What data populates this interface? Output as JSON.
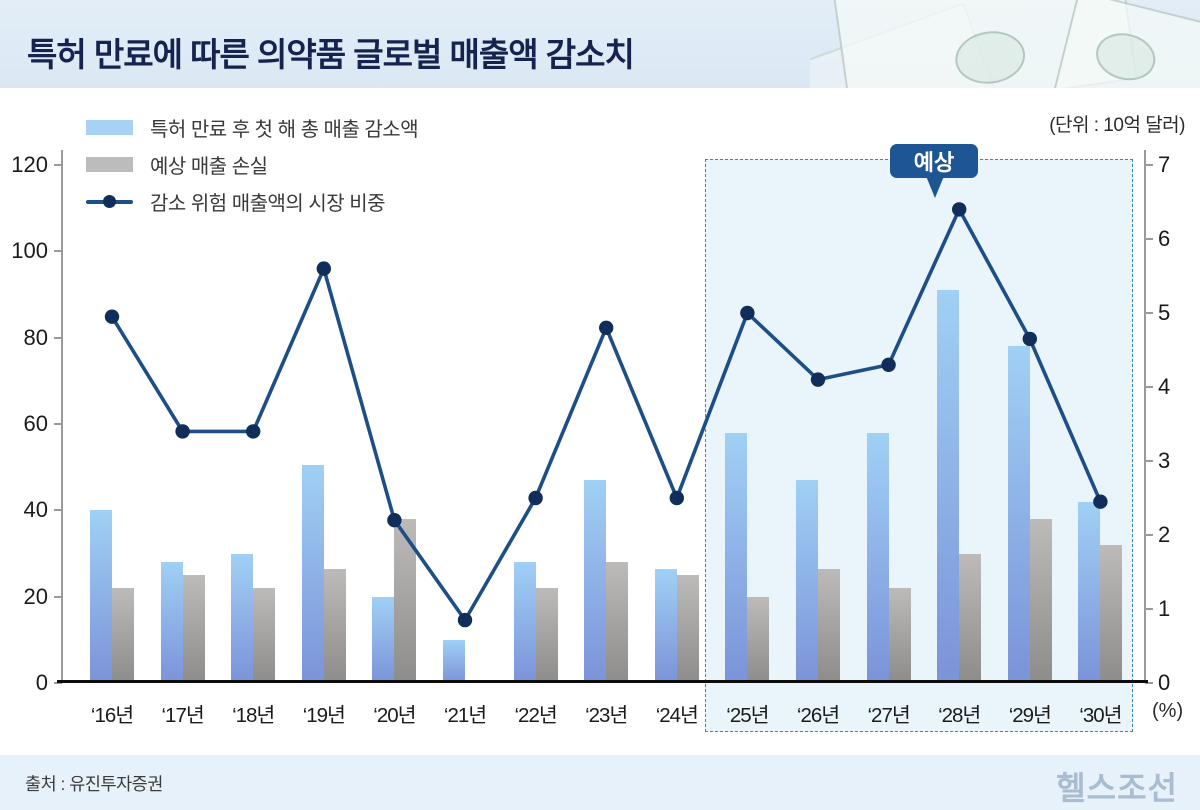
{
  "header": {
    "title": "특허 만료에 따른 의약품 글로벌 매출액 감소치"
  },
  "unit_label": "(단위 : 10억 달러)",
  "percent_label": "(%)",
  "legend": [
    {
      "label": "특허 만료 후 첫 해 총 매출 감소액",
      "type": "bar",
      "color": "#a6d2f4"
    },
    {
      "label": "예상 매출 손실",
      "type": "bar",
      "color": "#bcbcbc"
    },
    {
      "label": "감소 위험 매출액의 시장 비중",
      "type": "line",
      "color": "#1d4f86",
      "dot_color": "#102e59"
    }
  ],
  "chart_data": {
    "type": "bar",
    "title": "특허 만료에 따른 의약품 글로벌 매출액 감소치",
    "unit": "10억 달러",
    "categories": [
      "‘16년",
      "‘17년",
      "‘18년",
      "‘19년",
      "‘20년",
      "‘21년",
      "‘22년",
      "‘23년",
      "‘24년",
      "‘25년",
      "‘26년",
      "‘27년",
      "‘28년",
      "‘29년",
      "‘30년"
    ],
    "series": [
      {
        "name": "특허 만료 후 첫 해 총 매출 감소액",
        "type": "bar",
        "axis": "left",
        "values": [
          40,
          28,
          30,
          50.5,
          20,
          10,
          28,
          47,
          26.5,
          58,
          47,
          58,
          91,
          78,
          42
        ]
      },
      {
        "name": "예상 매출 손실",
        "type": "bar",
        "axis": "left",
        "values": [
          22,
          25,
          22,
          26.5,
          38,
          0.5,
          22,
          28,
          25,
          20,
          26.5,
          22,
          30,
          38,
          32
        ]
      },
      {
        "name": "감소 위험 매출액의 시장 비중",
        "type": "line",
        "axis": "right",
        "values": [
          4.95,
          3.4,
          3.4,
          5.6,
          2.2,
          0.85,
          2.5,
          4.8,
          2.5,
          5.0,
          4.1,
          4.3,
          6.4,
          4.65,
          2.45
        ]
      }
    ],
    "left_axis": {
      "min": 0,
      "max": 120,
      "step": 20
    },
    "right_axis": {
      "min": 0,
      "max": 7,
      "step": 1,
      "label": "(%)"
    },
    "forecast": {
      "label": "예상",
      "start_category": "‘25년",
      "start_index": 9
    },
    "legend_position": "top-left",
    "grid": false
  },
  "colors": {
    "bar_blue_top": "#a0d0f5",
    "bar_blue_bottom": "#7b93d8",
    "bar_gray_top": "#bdbbb9",
    "bar_gray_bottom": "#8e8c8a",
    "line": "#1d4f86",
    "dot": "#102e59",
    "forecast_fill": "#e9f4fb",
    "forecast_border": "#3d85c0",
    "badge_bg": "#1e5593",
    "title": "#16234e"
  },
  "footer": {
    "source": "출처 : 유진투자증권",
    "logo": "헬스조선"
  }
}
